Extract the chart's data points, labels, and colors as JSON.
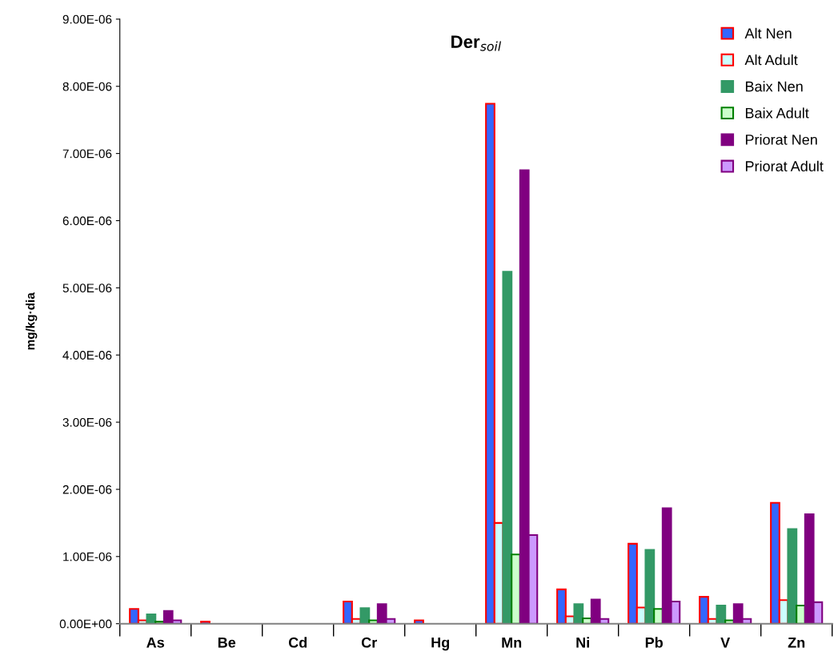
{
  "chart_data": {
    "type": "bar",
    "title": "Der$_{soil}$",
    "ylabel": "mg/kg·dia",
    "categories": [
      "As",
      "Be",
      "Cd",
      "Cr",
      "Hg",
      "Mn",
      "Ni",
      "Pb",
      "V",
      "Zn"
    ],
    "series": [
      {
        "name": "Alt Nen",
        "color": "#3366ff",
        "values": [
          2.2e-07,
          3e-08,
          0,
          3.3e-07,
          5e-08,
          7.74e-06,
          5.1e-07,
          1.19e-06,
          4e-07,
          1.8e-06
        ]
      },
      {
        "name": "Alt Adult",
        "color": "#ccffff",
        "values": [
          5e-08,
          0,
          0,
          7e-08,
          0,
          1.5e-06,
          1.1e-07,
          2.4e-07,
          7e-08,
          3.5e-07
        ]
      },
      {
        "name": "Baix Nen",
        "color": "#339966",
        "values": [
          1.4e-07,
          0,
          0,
          2.3e-07,
          0,
          5.24e-06,
          2.9e-07,
          1.1e-06,
          2.7e-07,
          1.41e-06
        ]
      },
      {
        "name": "Baix Adult",
        "color": "#ccffcc",
        "values": [
          3e-08,
          0,
          0,
          5e-08,
          0,
          1.03e-06,
          8e-08,
          2.2e-07,
          5e-08,
          2.7e-07
        ]
      },
      {
        "name": "Priorat Nen",
        "color": "#800080",
        "values": [
          1.9e-07,
          0,
          0,
          2.9e-07,
          0,
          6.75e-06,
          3.6e-07,
          1.72e-06,
          2.9e-07,
          1.63e-06
        ]
      },
      {
        "name": "Priorat Adult",
        "color": "#cc99ff",
        "values": [
          5e-08,
          0,
          0,
          7e-08,
          0,
          1.32e-06,
          7e-08,
          3.3e-07,
          7e-08,
          3.2e-07
        ]
      }
    ],
    "ylim": [
      0,
      9e-06
    ],
    "yticks": [
      {
        "value": 0,
        "label": "0.00E+00"
      },
      {
        "value": 1e-06,
        "label": "1.00E-06"
      },
      {
        "value": 2e-06,
        "label": "2.00E-06"
      },
      {
        "value": 3e-06,
        "label": "3.00E-06"
      },
      {
        "value": 4e-06,
        "label": "4.00E-06"
      },
      {
        "value": 5e-06,
        "label": "5.00E-06"
      },
      {
        "value": 6e-06,
        "label": "6.00E-06"
      },
      {
        "value": 7e-06,
        "label": "7.00E-06"
      },
      {
        "value": 8e-06,
        "label": "8.00E-06"
      },
      {
        "value": 9e-06,
        "label": "9.00E-06"
      }
    ],
    "grid": false,
    "legend": "top right"
  }
}
